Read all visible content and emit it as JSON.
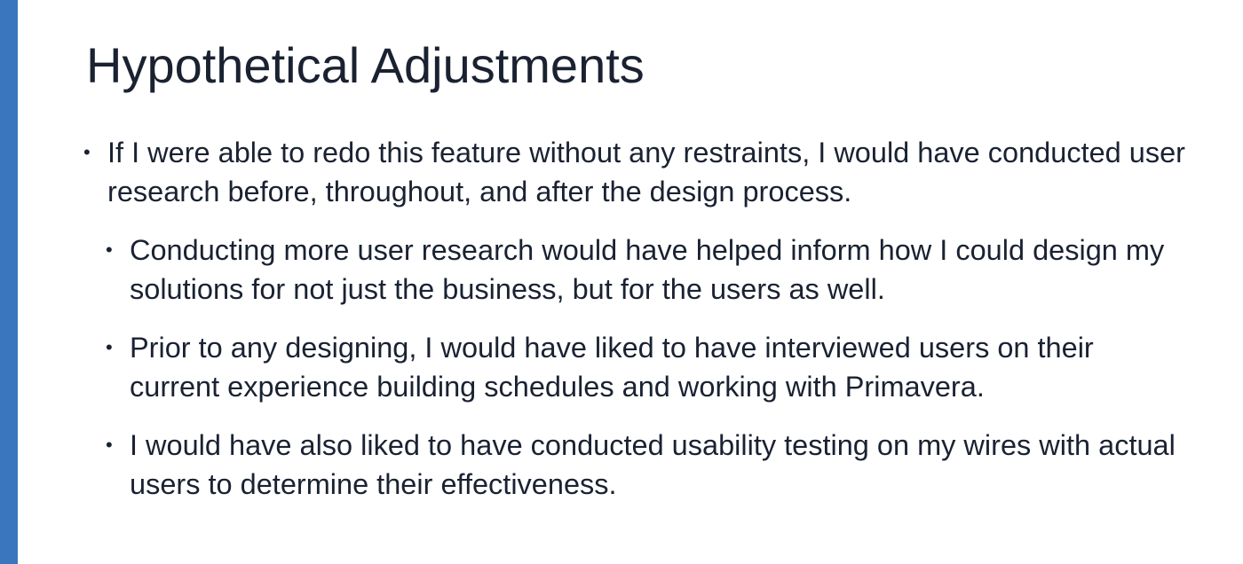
{
  "slide": {
    "title": "Hypothetical Adjustments",
    "accent_color": "#3a76be",
    "bullets": [
      {
        "level": 1,
        "marker": "•",
        "text": "If I were able to redo this feature without any restraints, I would have conducted user research before, throughout, and after the design process."
      },
      {
        "level": 2,
        "marker": "•",
        "text": "Conducting more user research would have helped inform how I could design my solutions for not just the business, but for the users as well."
      },
      {
        "level": 2,
        "marker": "•",
        "text": "Prior to any designing, I would have liked to have interviewed users on their current experience building schedules and working with Primavera."
      },
      {
        "level": 2,
        "marker": "•",
        "text": "I would have also liked to have conducted usability testing on my wires with actual users to determine their effectiveness."
      }
    ]
  }
}
